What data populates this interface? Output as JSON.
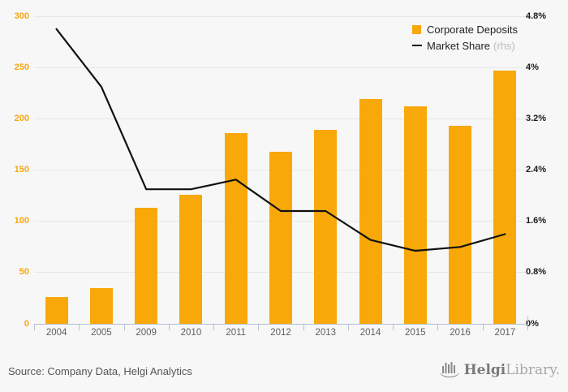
{
  "chart_data": {
    "type": "bar",
    "categories": [
      "2004",
      "2005",
      "2009",
      "2010",
      "2011",
      "2012",
      "2013",
      "2014",
      "2015",
      "2016",
      "2017"
    ],
    "series": [
      {
        "name": "Corporate Deposits",
        "type": "bar",
        "axis": "left",
        "color": "#f8a808",
        "values": [
          26,
          35,
          113,
          126,
          186,
          168,
          189,
          219,
          212,
          193,
          247
        ]
      },
      {
        "name": "Market Share",
        "note": "(rhs)",
        "type": "line",
        "axis": "right",
        "color": "#111111",
        "values": [
          4.6,
          3.7,
          2.1,
          2.1,
          2.25,
          1.76,
          1.76,
          1.31,
          1.14,
          1.2,
          1.4
        ]
      }
    ],
    "title": "",
    "xlabel": "",
    "ylabel": "",
    "left_axis": {
      "min": 0,
      "max": 300,
      "tick_values": [
        0,
        50,
        100,
        150,
        200,
        250,
        300
      ],
      "tick_labels": [
        "0",
        "50",
        "100",
        "150",
        "200",
        "250",
        "300"
      ],
      "color": "#f8a70c"
    },
    "right_axis": {
      "min": 0,
      "max": 4.8,
      "tick_values": [
        0,
        0.8,
        1.6,
        2.4,
        3.2,
        4,
        4.8
      ],
      "tick_labels": [
        "0%",
        "0.8%",
        "1.6%",
        "2.4%",
        "3.2%",
        "4%",
        "4.8%"
      ],
      "color": "#1a1a1a"
    },
    "grid": true,
    "legend_position": "top-right"
  },
  "legend": {
    "bar_label": "Corporate Deposits",
    "line_label": "Market Share",
    "line_note": "(rhs)"
  },
  "footer": {
    "source": "Source: Company Data, Helgi Analytics",
    "logo_bold": "Helgi",
    "logo_light": "Library."
  },
  "colors": {
    "background": "#f7f7f7",
    "bar": "#f8a808",
    "line": "#111111",
    "gridline": "#e8e8e8",
    "axis": "#b6c0d2"
  }
}
